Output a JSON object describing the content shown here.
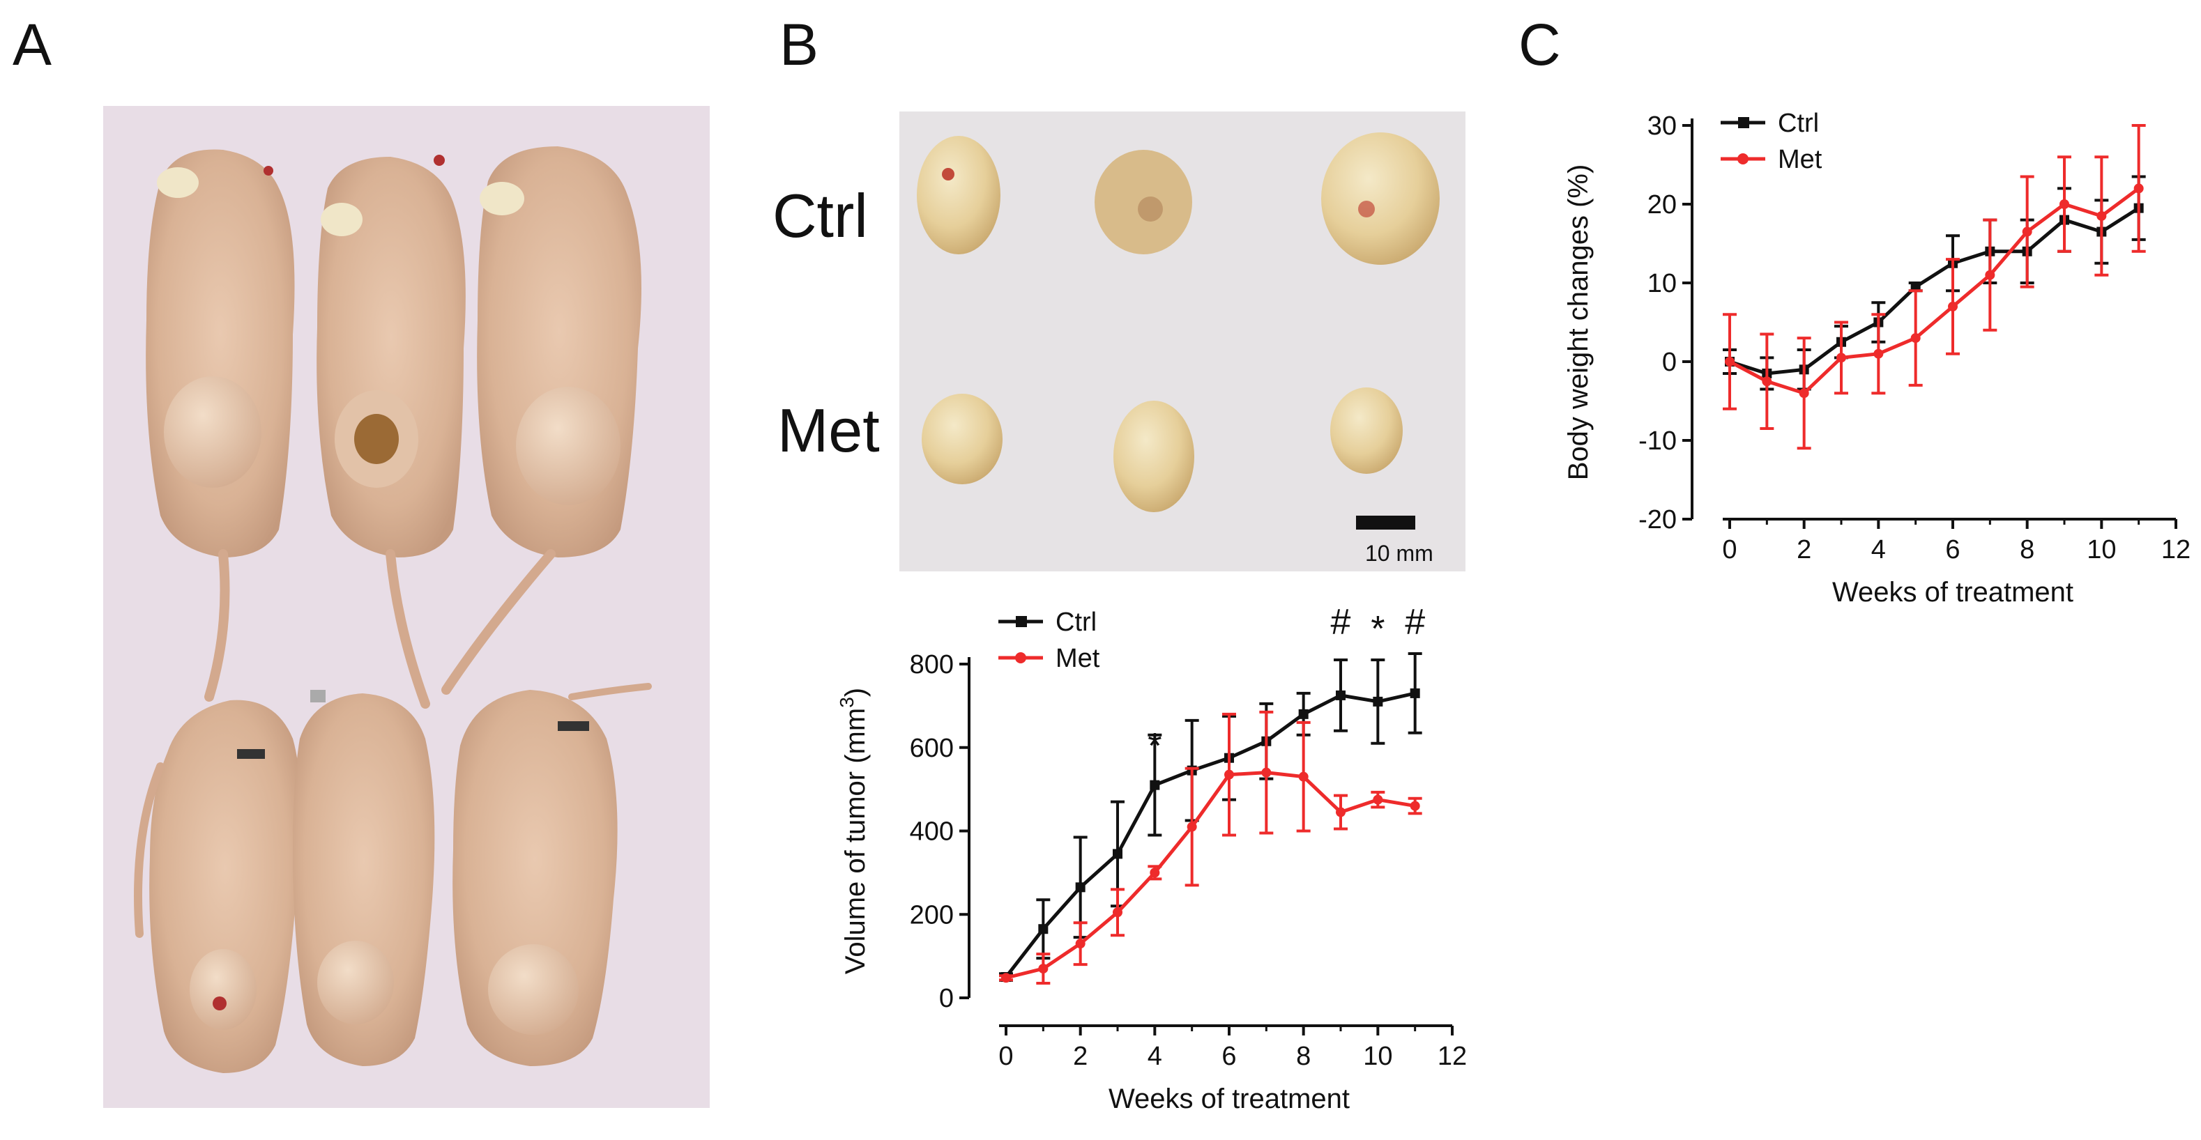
{
  "panels": {
    "a": {
      "letter": "A"
    },
    "b": {
      "letter": "B",
      "row_ctrl": "Ctrl",
      "row_met": "Met",
      "scale_bar": "10 mm"
    },
    "c": {
      "letter": "C"
    }
  },
  "colors": {
    "ctrl": "#111111",
    "met": "#ee2b2b"
  },
  "chart_data": [
    {
      "id": "tumor-volume",
      "type": "line",
      "title": "",
      "xlabel": "Weeks of treatment",
      "ylabel": "Volume of tumor (mm",
      "ylabel_sup": "3",
      "ylabel_close": ")",
      "xlim": [
        0,
        12
      ],
      "ylim": [
        0,
        800
      ],
      "xticks": [
        0,
        2,
        4,
        6,
        8,
        10,
        12
      ],
      "yticks": [
        0,
        200,
        400,
        600,
        800
      ],
      "x": [
        0,
        1,
        2,
        3,
        4,
        5,
        6,
        7,
        8,
        9,
        10,
        11
      ],
      "legend_position": "top-left",
      "series": [
        {
          "name": "Ctrl",
          "color": "#111111",
          "marker": "square",
          "values": [
            50,
            165,
            265,
            345,
            510,
            545,
            575,
            615,
            680,
            725,
            710,
            730
          ],
          "errors": [
            8,
            70,
            120,
            125,
            120,
            120,
            100,
            90,
            50,
            85,
            100,
            95
          ]
        },
        {
          "name": "Met",
          "color": "#ee2b2b",
          "marker": "circle",
          "values": [
            48,
            70,
            130,
            205,
            300,
            410,
            535,
            540,
            530,
            445,
            475,
            460
          ],
          "errors": [
            5,
            35,
            50,
            55,
            15,
            140,
            145,
            145,
            130,
            40,
            18,
            18
          ]
        }
      ],
      "annotations": [
        {
          "x": 4,
          "text": "*"
        },
        {
          "x": 9,
          "text": "#"
        },
        {
          "x": 10,
          "text": "*"
        },
        {
          "x": 11,
          "text": "#"
        }
      ]
    },
    {
      "id": "body-weight",
      "type": "line",
      "title": "",
      "xlabel": "Weeks of treatment",
      "ylabel": "Body weight changes  (%)",
      "xlim": [
        0,
        12
      ],
      "ylim": [
        -20,
        30
      ],
      "xticks": [
        0,
        2,
        4,
        6,
        8,
        10,
        12
      ],
      "yticks": [
        -20,
        -10,
        0,
        10,
        20,
        30
      ],
      "x": [
        0,
        1,
        2,
        3,
        4,
        5,
        6,
        7,
        8,
        9,
        10,
        11
      ],
      "legend_position": "top-left",
      "series": [
        {
          "name": "Ctrl",
          "color": "#111111",
          "marker": "square",
          "values": [
            0,
            -1.5,
            -1,
            2.5,
            5,
            9.5,
            12.5,
            14,
            14,
            18,
            16.5,
            19.5
          ],
          "errors": [
            1.5,
            2,
            2.5,
            2,
            2.5,
            0.5,
            3.5,
            4,
            4,
            4,
            4,
            4
          ]
        },
        {
          "name": "Met",
          "color": "#ee2b2b",
          "marker": "circle",
          "values": [
            0,
            -2.5,
            -4,
            0.5,
            1,
            3,
            7,
            11,
            16.5,
            20,
            18.5,
            22
          ],
          "errors": [
            6,
            6,
            7,
            4.5,
            5,
            6,
            6,
            7,
            7,
            6,
            7.5,
            8
          ]
        }
      ]
    }
  ]
}
